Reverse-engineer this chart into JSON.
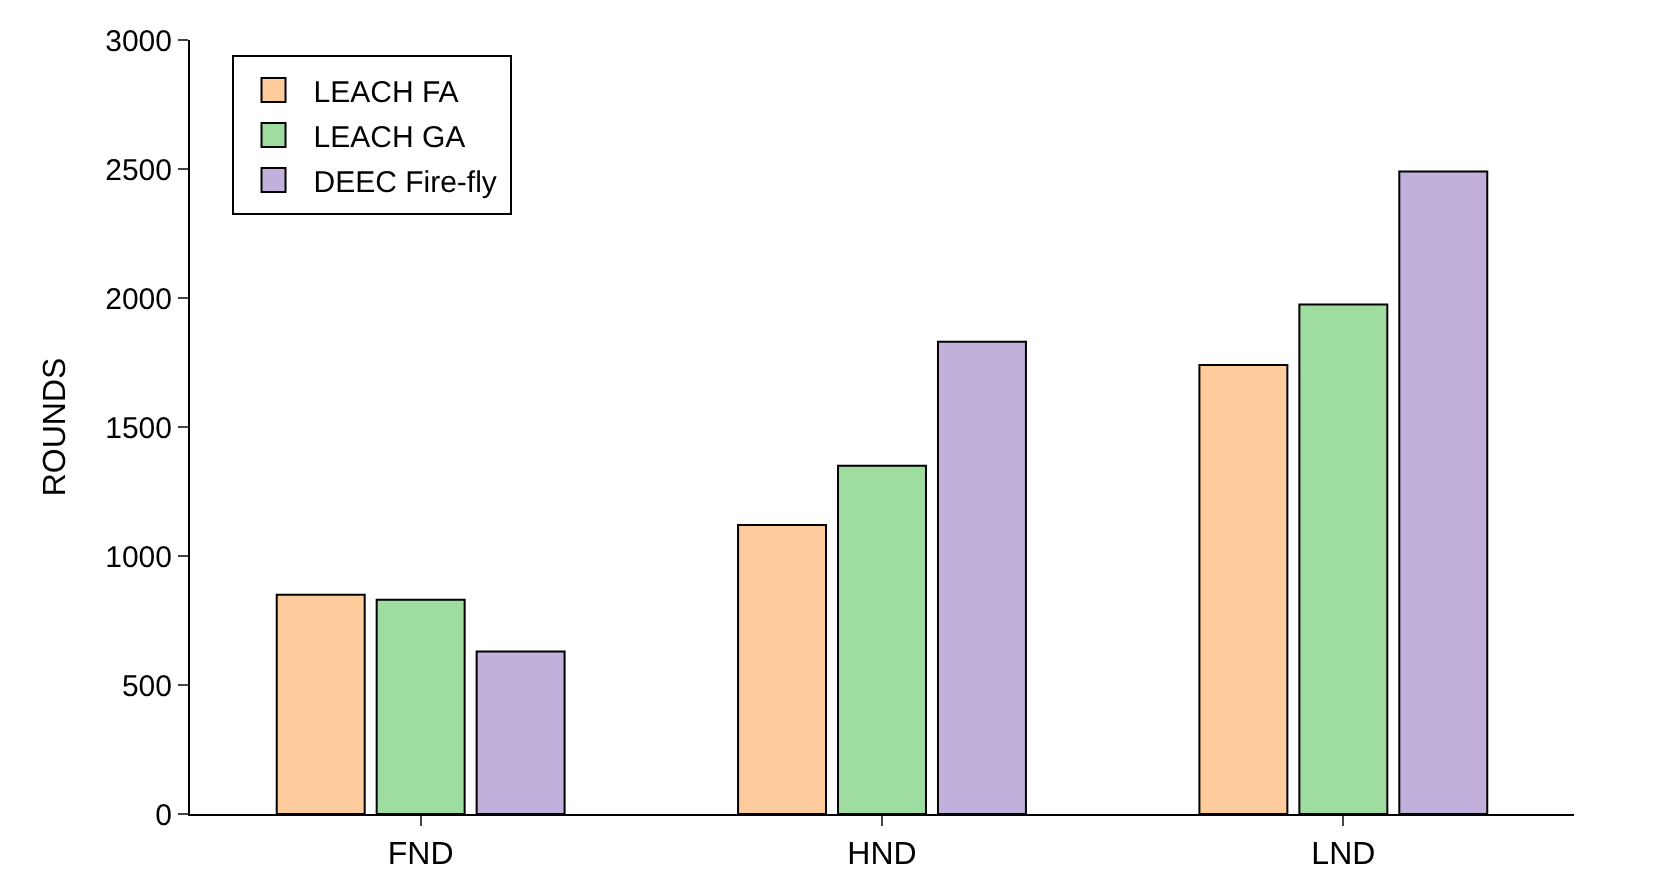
{
  "chart_data": {
    "type": "bar",
    "ylabel": "ROUNDS",
    "categories": [
      "FND",
      "HND",
      "LND"
    ],
    "series": [
      {
        "name": "LEACH FA",
        "color": "#fdcb9c",
        "values": [
          850,
          1120,
          1740
        ]
      },
      {
        "name": "LEACH GA",
        "color": "#9fdc9f",
        "values": [
          830,
          1350,
          1975
        ]
      },
      {
        "name": "DEEC Fire-fly",
        "color": "#c1b0dc",
        "values": [
          630,
          1830,
          2490
        ]
      }
    ],
    "ylim": [
      0,
      3000
    ],
    "yticks": [
      0,
      500,
      1000,
      1500,
      2000,
      2500,
      3000
    ],
    "grid": false,
    "legend": "top left"
  }
}
